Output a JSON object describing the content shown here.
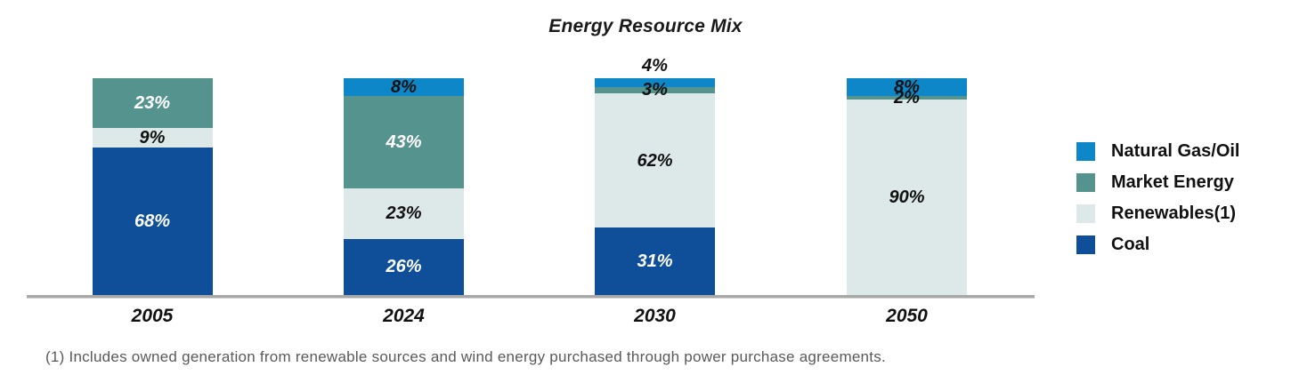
{
  "title": "Energy Resource Mix",
  "footnote": "(1) Includes owned generation from renewable sources and wind energy purchased through power purchase agreements.",
  "legend": {
    "items": [
      {
        "label": "Natural Gas/Oil",
        "series": "gas"
      },
      {
        "label": "Market Energy",
        "series": "market"
      },
      {
        "label": "Renewables(1)",
        "series": "renewables"
      },
      {
        "label": "Coal",
        "series": "coal"
      }
    ]
  },
  "colors": {
    "gas": "#0d87c8",
    "market": "#55938f",
    "renewables": "#dde8e9",
    "coal": "#0f4f99",
    "axis": "#a8a8a8",
    "label_light": "#ffffff",
    "label_dark": "#111111",
    "footnote_text": "#595959"
  },
  "chart_data": {
    "type": "bar",
    "stacked": true,
    "unit": "%",
    "title": "Energy Resource Mix",
    "categories": [
      "2005",
      "2024",
      "2030",
      "2050"
    ],
    "series": [
      {
        "name": "Natural Gas/Oil",
        "key": "gas",
        "values": [
          0,
          8,
          4,
          8
        ]
      },
      {
        "name": "Market Energy",
        "key": "market",
        "values": [
          23,
          43,
          3,
          2
        ]
      },
      {
        "name": "Renewables(1)",
        "key": "renewables",
        "values": [
          9,
          23,
          62,
          90
        ]
      },
      {
        "name": "Coal",
        "key": "coal",
        "values": [
          68,
          26,
          31,
          0
        ]
      }
    ],
    "ylim": [
      0,
      100
    ],
    "grid": false,
    "legend_position": "right",
    "value_label_format": "{v}%"
  }
}
